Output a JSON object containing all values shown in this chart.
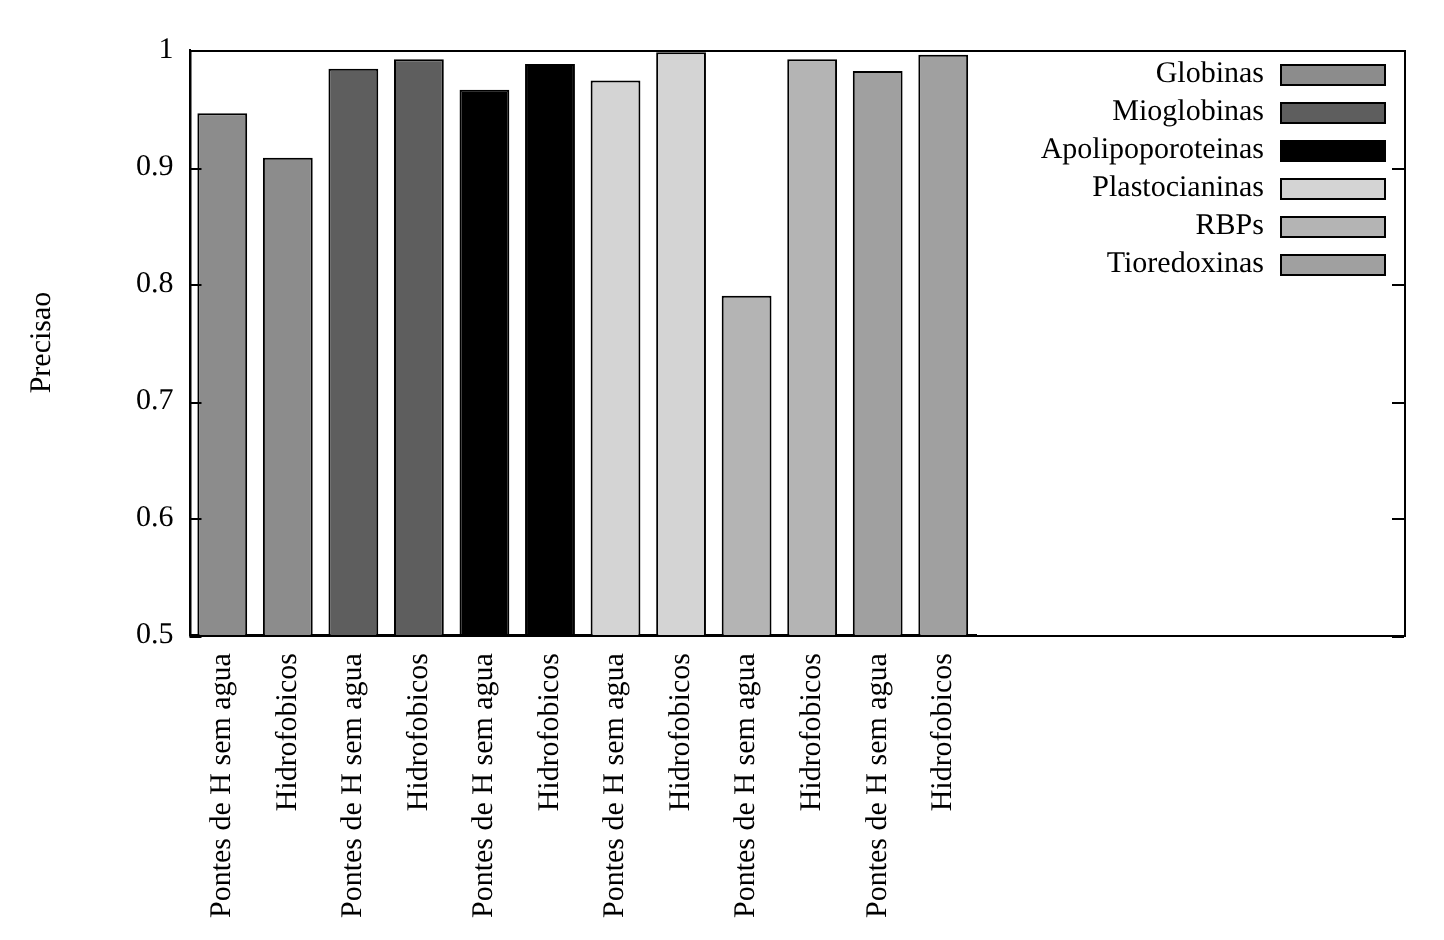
{
  "chart_data": {
    "type": "bar",
    "ylabel": "Precisao",
    "categories": [
      "Pontes de H sem agua",
      "Hidrofobicos",
      "Pontes de H sem agua",
      "Hidrofobicos",
      "Pontes de H sem agua",
      "Hidrofobicos",
      "Pontes de H sem agua",
      "Hidrofobicos",
      "Pontes de H sem agua",
      "Hidrofobicos",
      "Pontes de H sem agua",
      "Hidrofobicos"
    ],
    "series": [
      {
        "name": "Globinas",
        "color": "#8c8c8c",
        "values": [
          0.946,
          0.908,
          null,
          null,
          null,
          null,
          null,
          null,
          null,
          null,
          null,
          null
        ]
      },
      {
        "name": "Mioglobinas",
        "color": "#5e5e5e",
        "values": [
          null,
          null,
          0.984,
          0.992,
          null,
          null,
          null,
          null,
          null,
          null,
          null,
          null
        ]
      },
      {
        "name": "Apolipoporoteinas",
        "color": "#000000",
        "values": [
          null,
          null,
          null,
          null,
          0.966,
          0.988,
          null,
          null,
          null,
          null,
          null,
          null
        ]
      },
      {
        "name": "Plastocianinas",
        "color": "#d4d4d4",
        "values": [
          null,
          null,
          null,
          null,
          null,
          null,
          0.974,
          0.998,
          null,
          null,
          null,
          null
        ]
      },
      {
        "name": "RBPs",
        "color": "#b4b4b4",
        "values": [
          null,
          null,
          null,
          null,
          null,
          null,
          null,
          null,
          0.79,
          0.992,
          null,
          null
        ]
      },
      {
        "name": "Tioredoxinas",
        "color": "#a0a0a0",
        "values": [
          null,
          null,
          null,
          null,
          null,
          null,
          null,
          null,
          null,
          null,
          0.982,
          0.996
        ]
      }
    ],
    "ylim": [
      0.5,
      1
    ],
    "yticks": [
      0.5,
      0.6,
      0.7,
      0.8,
      0.9,
      1
    ],
    "grid": false,
    "legend": "top right"
  }
}
